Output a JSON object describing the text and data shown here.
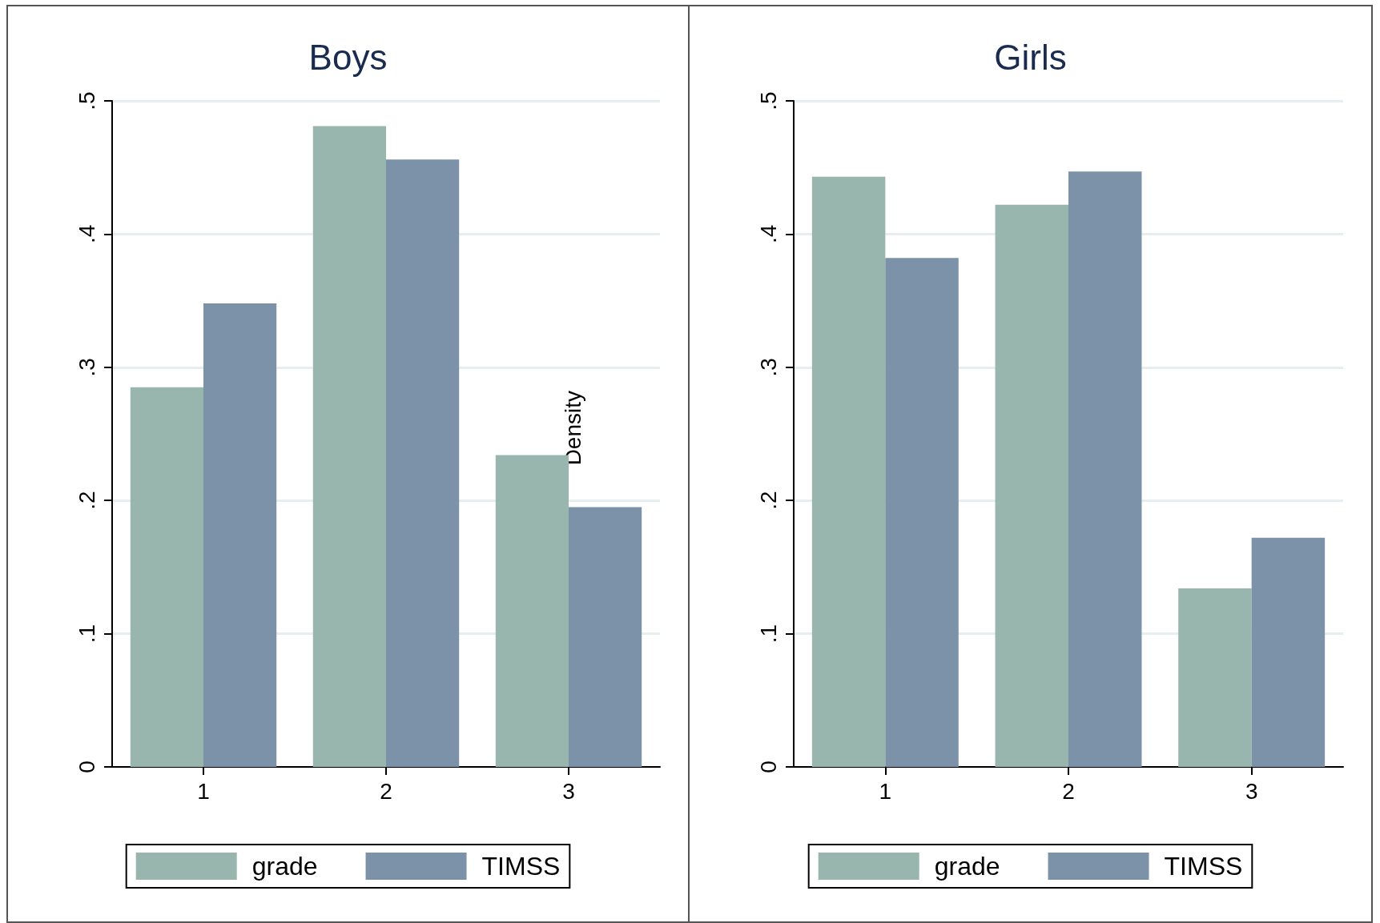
{
  "chart_data": [
    {
      "type": "bar",
      "title": "Boys",
      "ylabel": "Density",
      "categories": [
        "1",
        "2",
        "3"
      ],
      "series": [
        {
          "name": "grade",
          "color": "#98b5ae",
          "values": [
            0.285,
            0.481,
            0.234
          ]
        },
        {
          "name": "TIMSS",
          "color": "#7b92a8",
          "values": [
            0.348,
            0.456,
            0.195
          ]
        }
      ],
      "ylim": [
        0,
        0.5
      ],
      "yticks": [
        0,
        {
          "value": 0.1,
          "label": ".1"
        },
        {
          "value": 0.2,
          "label": ".2"
        },
        {
          "value": 0.3,
          "label": ".3"
        },
        {
          "value": 0.4,
          "label": ".4"
        },
        {
          "value": 0.5,
          "label": ".5"
        }
      ],
      "grid": "y",
      "legend": "bottom"
    },
    {
      "type": "bar",
      "title": "Girls",
      "categories": [
        "1",
        "2",
        "3"
      ],
      "series": [
        {
          "name": "grade",
          "color": "#98b5ae",
          "values": [
            0.443,
            0.422,
            0.134
          ]
        },
        {
          "name": "TIMSS",
          "color": "#7b92a8",
          "values": [
            0.382,
            0.447,
            0.172
          ]
        }
      ],
      "ylim": [
        0,
        0.5
      ],
      "yticks": [
        0,
        {
          "value": 0.1,
          "label": ".1"
        },
        {
          "value": 0.2,
          "label": ".2"
        },
        {
          "value": 0.3,
          "label": ".3"
        },
        {
          "value": 0.4,
          "label": ".4"
        },
        {
          "value": 0.5,
          "label": ".5"
        }
      ],
      "grid": "y",
      "legend": "bottom"
    }
  ]
}
